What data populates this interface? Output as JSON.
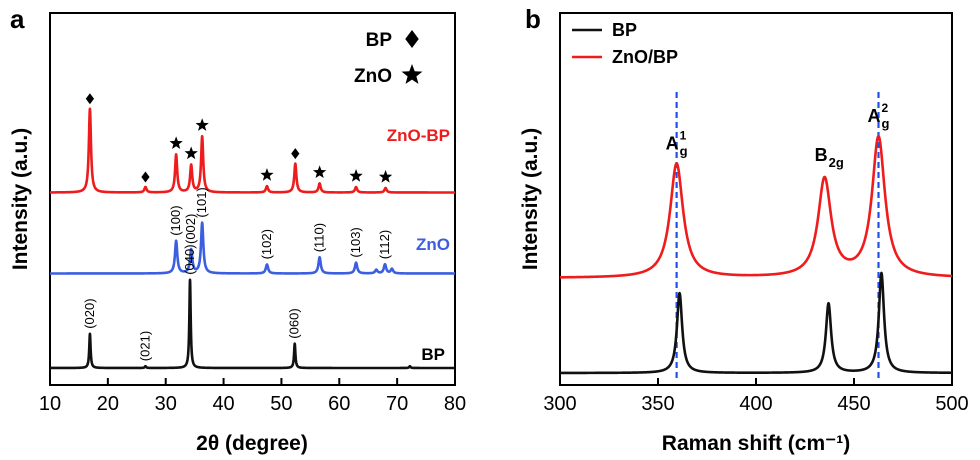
{
  "chart_data": [
    {
      "panel_label": "a",
      "type": "line",
      "xlabel": "2θ (degree)",
      "ylabel": "Intensity (a.u.)",
      "xlim": [
        10,
        80
      ],
      "xticks": [
        10,
        20,
        30,
        40,
        50,
        60,
        70,
        80
      ],
      "legend": {
        "position": "top-right",
        "entries": [
          {
            "label": "BP",
            "marker": "diamond"
          },
          {
            "label": "ZnO",
            "marker": "star"
          }
        ]
      },
      "series": [
        {
          "name": "ZnO-BP",
          "color": "#ee1c1c",
          "baseline": 1.95,
          "width": 0.22,
          "peaks": [
            {
              "x": 16.9,
              "h": 0.93,
              "marker": "diamond"
            },
            {
              "x": 26.5,
              "h": 0.06,
              "marker": "diamond"
            },
            {
              "x": 31.8,
              "h": 0.42,
              "marker": "star"
            },
            {
              "x": 34.4,
              "h": 0.3,
              "marker": "star"
            },
            {
              "x": 36.3,
              "h": 0.62,
              "marker": "star"
            },
            {
              "x": 47.5,
              "h": 0.07,
              "marker": "star"
            },
            {
              "x": 52.4,
              "h": 0.32,
              "marker": "diamond"
            },
            {
              "x": 56.6,
              "h": 0.1,
              "marker": "star"
            },
            {
              "x": 62.9,
              "h": 0.06,
              "marker": "star"
            },
            {
              "x": 68.0,
              "h": 0.05,
              "marker": "star"
            }
          ]
        },
        {
          "name": "ZnO",
          "color": "#3b5fe0",
          "baseline": 1.05,
          "width": 0.24,
          "peaks": [
            {
              "x": 31.8,
              "h": 0.36,
              "label": "(100)"
            },
            {
              "x": 34.4,
              "h": 0.26,
              "label": "(002)"
            },
            {
              "x": 36.3,
              "h": 0.56,
              "label": "(101)"
            },
            {
              "x": 47.5,
              "h": 0.1,
              "label": "(102)"
            },
            {
              "x": 56.6,
              "h": 0.18,
              "label": "(110)"
            },
            {
              "x": 62.9,
              "h": 0.12,
              "label": "(103)"
            },
            {
              "x": 66.4,
              "h": 0.04
            },
            {
              "x": 67.9,
              "h": 0.1,
              "label": "(112)"
            },
            {
              "x": 69.1,
              "h": 0.05
            }
          ]
        },
        {
          "name": "BP",
          "color": "#111111",
          "baseline": 0.0,
          "width": 0.14,
          "peaks": [
            {
              "x": 16.9,
              "h": 0.38,
              "label": "(020)"
            },
            {
              "x": 26.5,
              "h": 0.02,
              "label": "(021)"
            },
            {
              "x": 34.2,
              "h": 0.98,
              "label": "(040)"
            },
            {
              "x": 52.3,
              "h": 0.27,
              "label": "(060)"
            },
            {
              "x": 72.2,
              "h": 0.02
            }
          ]
        }
      ]
    },
    {
      "panel_label": "b",
      "type": "line",
      "xlabel": "Raman shift (cm⁻¹)",
      "ylabel": "Intensity (a.u.)",
      "xlim": [
        300,
        500
      ],
      "xticks": [
        300,
        350,
        400,
        450,
        500
      ],
      "legend": {
        "position": "top-left",
        "entries": [
          {
            "label": "BP",
            "color": "#111111"
          },
          {
            "label": "ZnO/BP",
            "color": "#ee1c1c"
          }
        ]
      },
      "mode_labels": [
        {
          "x": 359,
          "text": "A",
          "sub": "g",
          "sup": "1"
        },
        {
          "x": 435,
          "text": "B",
          "sub": "2g"
        },
        {
          "x": 462,
          "text": "A",
          "sub": "g",
          "sup": "2"
        }
      ],
      "reference_lines": [
        359.5,
        462.5
      ],
      "series": [
        {
          "name": "ZnO/BP",
          "color": "#ee1c1c",
          "baseline": 1.0,
          "width": 4.0,
          "peaks": [
            {
              "x": 359.5,
              "h": 1.2
            },
            {
              "x": 435.0,
              "h": 1.03
            },
            {
              "x": 462.5,
              "h": 1.47
            }
          ]
        },
        {
          "name": "BP",
          "color": "#111111",
          "baseline": 0.0,
          "width": 1.6,
          "peaks": [
            {
              "x": 361.0,
              "h": 0.84
            },
            {
              "x": 437.0,
              "h": 0.73
            },
            {
              "x": 464.0,
              "h": 1.05
            }
          ]
        }
      ]
    }
  ]
}
